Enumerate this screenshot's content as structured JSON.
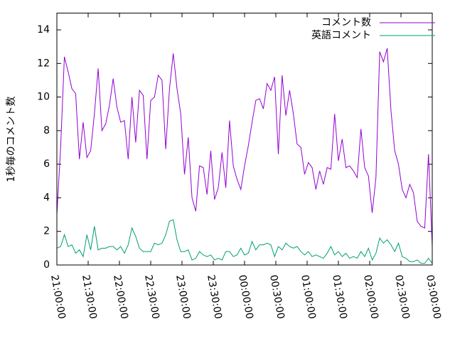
{
  "chart_data": {
    "type": "line",
    "ylabel": "1秒毎のコメント数",
    "x": [
      "21:00:00",
      "21:03:36",
      "21:07:12",
      "21:10:48",
      "21:14:24",
      "21:18:00",
      "21:21:36",
      "21:25:12",
      "21:28:48",
      "21:32:24",
      "21:36:00",
      "21:39:36",
      "21:43:12",
      "21:46:48",
      "21:50:24",
      "21:54:00",
      "21:57:36",
      "22:01:12",
      "22:04:48",
      "22:08:24",
      "22:12:00",
      "22:15:36",
      "22:19:12",
      "22:22:48",
      "22:26:24",
      "22:30:00",
      "22:33:36",
      "22:37:12",
      "22:40:48",
      "22:44:24",
      "22:48:00",
      "22:51:36",
      "22:55:12",
      "22:58:48",
      "23:02:24",
      "23:06:00",
      "23:09:36",
      "23:13:12",
      "23:16:48",
      "23:20:24",
      "23:24:00",
      "23:27:36",
      "23:31:12",
      "23:34:48",
      "23:38:24",
      "23:42:00",
      "23:45:36",
      "23:49:12",
      "23:52:48",
      "23:56:24",
      "00:00:00",
      "00:03:36",
      "00:07:12",
      "00:10:48",
      "00:14:24",
      "00:18:00",
      "00:21:36",
      "00:25:12",
      "00:28:48",
      "00:32:24",
      "00:36:00",
      "00:39:36",
      "00:43:12",
      "00:46:48",
      "00:50:24",
      "00:54:00",
      "00:57:36",
      "01:01:12",
      "01:04:48",
      "01:08:24",
      "01:12:00",
      "01:15:36",
      "01:19:12",
      "01:22:48",
      "01:26:24",
      "01:30:00",
      "01:33:36",
      "01:37:12",
      "01:40:48",
      "01:44:24",
      "01:48:00",
      "01:51:36",
      "01:55:12",
      "01:58:48",
      "02:02:24",
      "02:06:00",
      "02:09:36",
      "02:13:12",
      "02:16:48",
      "02:20:24",
      "02:24:00",
      "02:27:36",
      "02:31:12",
      "02:34:48",
      "02:38:24",
      "02:42:00",
      "02:45:36",
      "02:49:12",
      "02:52:48",
      "02:56:24",
      "03:00:00"
    ],
    "series": [
      {
        "name": "コメント数",
        "color": "#9400d3",
        "values": [
          3.0,
          7,
          12.4,
          11.5,
          10.5,
          10.2,
          6.3,
          8.5,
          6.4,
          6.8,
          9,
          11.7,
          8,
          8.4,
          9.5,
          11.1,
          9.4,
          8.5,
          8.6,
          6.3,
          10,
          7.3,
          10.4,
          10.1,
          6.3,
          9.8,
          10,
          11.3,
          11,
          6.9,
          10.5,
          12.6,
          10.5,
          9,
          5.4,
          7.6,
          4,
          3.2,
          5.9,
          5.8,
          4.2,
          6.8,
          3.9,
          4.6,
          6.7,
          4.6,
          8.6,
          5.9,
          5.1,
          4.5,
          5.9,
          7.1,
          8.5,
          9.8,
          9.9,
          9.3,
          10.8,
          10.4,
          11.2,
          6.6,
          11.3,
          8.9,
          10.4,
          9,
          7.2,
          7,
          5.4,
          6.1,
          5.8,
          4.5,
          5.6,
          4.8,
          5.8,
          5.7,
          9,
          6.2,
          7.5,
          5.8,
          5.9,
          5.6,
          5.2,
          8.1,
          5.8,
          5.3,
          3.1,
          5.2,
          12.7,
          12.1,
          12.9,
          9.2,
          6.8,
          6,
          4.5,
          4,
          4.8,
          4.3,
          2.6,
          2.3,
          2.2,
          6.6,
          1.1
        ]
      },
      {
        "name": "英語コメント",
        "color": "#009e73",
        "values": [
          1.0,
          1.1,
          1.8,
          1.1,
          1.2,
          0.7,
          0.9,
          0.5,
          1.8,
          0.9,
          2.3,
          0.9,
          1.0,
          1.0,
          1.1,
          1.1,
          0.9,
          1.1,
          0.7,
          1.2,
          2.2,
          1.7,
          1.0,
          0.8,
          0.8,
          0.8,
          1.3,
          1.2,
          1.3,
          1.8,
          2.6,
          2.7,
          1.5,
          0.8,
          0.8,
          0.9,
          0.3,
          0.4,
          0.8,
          0.6,
          0.5,
          0.6,
          0.3,
          0.4,
          0.3,
          0.8,
          0.8,
          0.5,
          0.6,
          1.0,
          0.6,
          0.7,
          1.4,
          0.9,
          1.2,
          1.2,
          1.3,
          1.2,
          0.5,
          1.1,
          0.9,
          1.3,
          1.1,
          1.0,
          1.1,
          0.8,
          0.6,
          0.8,
          0.5,
          0.6,
          0.5,
          0.4,
          0.7,
          1.1,
          0.6,
          0.8,
          0.5,
          0.7,
          0.4,
          0.5,
          0.4,
          0.8,
          0.5,
          1.0,
          0.3,
          0.7,
          1.6,
          1.3,
          1.5,
          1.2,
          0.8,
          1.3,
          0.5,
          0.4,
          0.2,
          0.2,
          0.3,
          0.1,
          0.1,
          0.4,
          0.1
        ]
      }
    ],
    "xlim": [
      "21:00:00",
      "03:00:00"
    ],
    "xticks": [
      "21:00:00",
      "21:30:00",
      "22:00:00",
      "22:30:00",
      "23:00:00",
      "23:30:00",
      "00:00:00",
      "00:30:00",
      "01:00:00",
      "01:30:00",
      "02:00:00",
      "02:30:00",
      "03:00:00"
    ],
    "ylim": [
      0,
      15
    ],
    "yticks": [
      0,
      2,
      4,
      6,
      8,
      10,
      12,
      14
    ],
    "legend": "upper right",
    "grid": false
  }
}
